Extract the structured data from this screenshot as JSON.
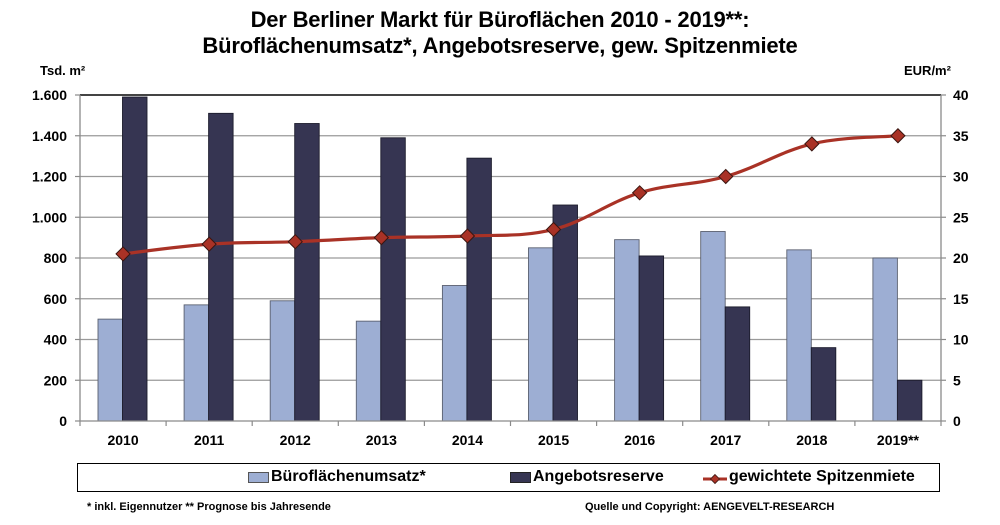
{
  "chart_data": {
    "type": "bar",
    "title": "Der Berliner Markt für Büroflächen 2010 - 2019**:",
    "subtitle": "Büroflächenumsatz*, Angebotsreserve, gew. Spitzenmiete",
    "ylabel_left": "Tsd. m²",
    "ylabel_right": "EUR/m²",
    "categories": [
      "2010",
      "2011",
      "2012",
      "2013",
      "2014",
      "2015",
      "2016",
      "2017",
      "2018",
      "2019**"
    ],
    "y_left": {
      "range": [
        0,
        1600
      ],
      "ticks": [
        0,
        200,
        400,
        600,
        800,
        1000,
        1200,
        1400,
        1600
      ],
      "tick_labels": [
        "0",
        "200",
        "400",
        "600",
        "800",
        "1.000",
        "1.200",
        "1.400",
        "1.600"
      ]
    },
    "y_right": {
      "range": [
        0,
        40
      ],
      "ticks": [
        0,
        5,
        10,
        15,
        20,
        25,
        30,
        35,
        40
      ],
      "tick_labels": [
        "0",
        "5",
        "10",
        "15",
        "20",
        "25",
        "30",
        "35",
        "40"
      ]
    },
    "grid": true,
    "legend_position": "bottom",
    "series": [
      {
        "name": "Büroflächenumsatz*",
        "type": "bar",
        "axis": "left",
        "color": "#9DAED3",
        "values": [
          500,
          570,
          590,
          490,
          665,
          850,
          890,
          930,
          840,
          800
        ]
      },
      {
        "name": "Angebotsreserve",
        "type": "bar",
        "axis": "left",
        "color": "#363552",
        "values": [
          1590,
          1510,
          1460,
          1390,
          1290,
          1060,
          810,
          560,
          360,
          200
        ]
      },
      {
        "name": "gewichtete Spitzenmiete",
        "type": "line",
        "axis": "right",
        "color": "#A93226",
        "marker": "diamond",
        "values": [
          20.5,
          21.7,
          22.0,
          22.5,
          22.7,
          23.5,
          28.0,
          30.0,
          34.0,
          35.0
        ]
      }
    ]
  },
  "footer": {
    "note": "* inkl. Eigennutzer ** Prognose bis Jahresende",
    "source": "Quelle und Copyright: AENGEVELT-RESEARCH"
  }
}
